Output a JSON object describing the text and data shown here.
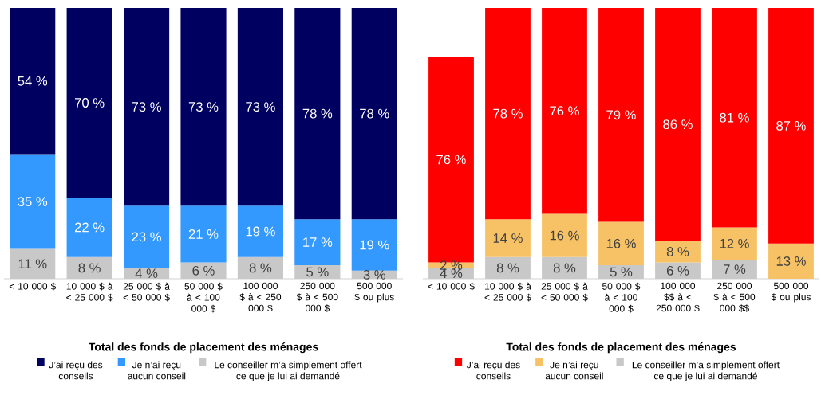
{
  "chart_data": [
    {
      "type": "bar",
      "stacked": true,
      "xlabel": "Total des fonds de placement des ménages",
      "legend": "bottom",
      "categories": [
        "< 10 000 $",
        "10 000 $ à < 25 000 $",
        "25 000 $ à < 50 000 $",
        "50 000 $ à < 100 000 $",
        "100 000 $ à < 250 000 $",
        "250 000 $ à < 500 000 $",
        "500 000 $ ou plus"
      ],
      "series": [
        {
          "name": "Le conseiller m’a simplement offert ce que je lui ai demandé",
          "color": "#c8c8c8",
          "values": [
            11,
            8,
            4,
            6,
            8,
            5,
            3
          ],
          "value_labels": [
            "11 %",
            "8 %",
            "4 %",
            "6 %",
            "8 %",
            "5 %",
            "3 %"
          ]
        },
        {
          "name": "Je n’ai reçu aucun conseil",
          "color": "#3399ff",
          "values": [
            35,
            22,
            23,
            21,
            19,
            17,
            19
          ],
          "value_labels": [
            "35 %",
            "22 %",
            "23 %",
            "21 %",
            "19 %",
            "17 %",
            "19 %"
          ]
        },
        {
          "name": "J’ai reçu des conseils",
          "color": "#000060",
          "values": [
            54,
            70,
            73,
            73,
            73,
            78,
            78
          ],
          "value_labels": [
            "54 %",
            "70 %",
            "73 %",
            "73 %",
            "73 %",
            "78 %",
            "78 %"
          ]
        }
      ]
    },
    {
      "type": "bar",
      "stacked": true,
      "xlabel": "Total des fonds de placement des ménages",
      "legend": "bottom",
      "categories": [
        "< 10 000 $",
        "10 000 $ à < 25 000 $",
        "25 000 $ à < 50 000 $",
        "50 000 $ à < 100 000 $",
        "100 000 $$ à < 250 000 $",
        "250 000 $ à < 500 000 $$",
        "500 000 $ ou plus"
      ],
      "series": [
        {
          "name": "Le conseiller m’a simplement offert ce que je lui ai demandé",
          "color": "#c8c8c8",
          "values": [
            4,
            8,
            8,
            5,
            6,
            7,
            null
          ],
          "value_labels": [
            "4 %",
            "8 %",
            "8 %",
            "5 %",
            "6 %",
            "7 %",
            null
          ]
        },
        {
          "name": "Je n’ai reçu aucun conseil",
          "color": "#f7c266",
          "values": [
            2,
            14,
            16,
            16,
            8,
            12,
            13
          ],
          "value_labels": [
            "2 %",
            "14 %",
            "16 %",
            "16 %",
            "8 %",
            "12 %",
            "13 %"
          ]
        },
        {
          "name": "J’ai reçu des conseils",
          "color": "#ff0000",
          "values": [
            76,
            78,
            76,
            79,
            86,
            81,
            87
          ],
          "value_labels": [
            "76 %",
            "78 %",
            "76 %",
            "79 %",
            "86 %",
            "81 %",
            "87 %"
          ]
        }
      ]
    }
  ]
}
